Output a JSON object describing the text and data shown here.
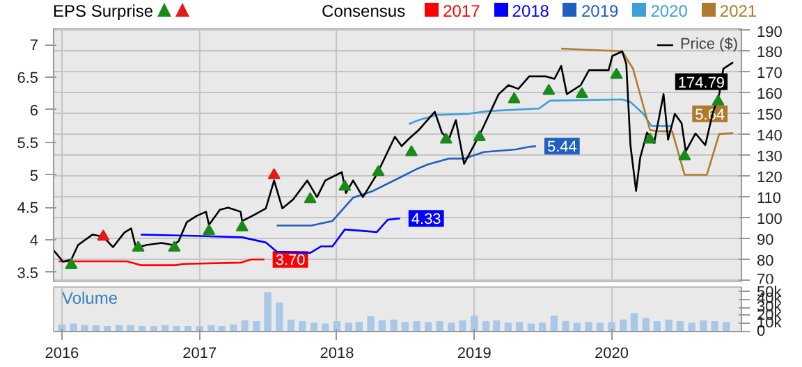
{
  "chart_data": [
    {
      "type": "line",
      "legend_title": "Consensus",
      "annotations": [
        "EPS Surprise"
      ],
      "legend": "top",
      "grid": true,
      "tick_labels": "y",
      "xlim": [
        "2015-12-10",
        "2020-12-11"
      ],
      "xticks": [
        "2016",
        "2017",
        "2018",
        "2019",
        "2020"
      ],
      "ylim": [
        3.36,
        7.25
      ],
      "yticks": [
        3.5,
        4,
        4.5,
        5,
        5.5,
        6,
        6.5,
        7
      ],
      "y2lim": [
        69.5,
        191
      ],
      "y2ticks": [
        70,
        80,
        90,
        100,
        110,
        120,
        130,
        140,
        150,
        160,
        170,
        180,
        190
      ],
      "series": [
        {
          "name": "2017",
          "color": "#ff0000",
          "x": [
            "2015-12-24",
            "2016-06-22",
            "2016-07-29",
            "2016-10-29",
            "2016-11-17",
            "2017-04-20",
            "2017-05-19",
            "2017-06-22"
          ],
          "values": [
            3.67,
            3.67,
            3.61,
            3.61,
            3.63,
            3.65,
            3.7,
            3.7
          ],
          "value_labels": [
            null,
            null,
            null,
            null,
            null,
            null,
            null,
            "3.70"
          ]
        },
        {
          "name": "2018",
          "color": "#0000ff",
          "x": [
            "2016-07-29",
            "2017-01-03",
            "2017-04-24",
            "2017-06-26",
            "2017-07-25",
            "2017-10-22",
            "2017-11-20",
            "2017-12-20",
            "2018-01-22",
            "2018-04-17",
            "2018-05-16",
            "2018-06-18"
          ],
          "values": [
            4.08,
            4.06,
            4.04,
            3.96,
            3.82,
            3.8,
            3.9,
            3.9,
            4.16,
            4.12,
            4.31,
            4.33
          ],
          "value_labels": [
            null,
            null,
            null,
            null,
            null,
            null,
            null,
            null,
            null,
            null,
            null,
            "4.33"
          ]
        },
        {
          "name": "2019",
          "color": "#1f5fbf",
          "x": [
            "2017-07-25",
            "2017-10-25",
            "2017-12-20",
            "2018-02-13",
            "2018-04-06",
            "2018-06-18",
            "2018-08-05",
            "2018-08-31",
            "2018-10-25",
            "2018-12-05",
            "2019-01-26",
            "2019-04-21",
            "2019-05-27",
            "2019-06-14"
          ],
          "values": [
            4.22,
            4.22,
            4.29,
            4.65,
            4.75,
            4.96,
            5.1,
            5.16,
            5.25,
            5.25,
            5.35,
            5.39,
            5.43,
            5.44
          ],
          "value_labels": [
            null,
            null,
            null,
            null,
            null,
            null,
            null,
            null,
            null,
            null,
            null,
            null,
            null,
            "5.44"
          ]
        },
        {
          "name": "2020",
          "color": "#3fa0d8",
          "x": [
            "2018-07-11",
            "2018-08-05",
            "2018-09-22",
            "2018-12-19",
            "2019-02-06",
            "2019-06-22",
            "2019-07-21",
            "2020-01-29",
            "2020-02-20",
            "2020-03-25",
            "2020-04-16",
            "2020-06-10"
          ],
          "values": [
            5.78,
            5.84,
            5.92,
            5.94,
            5.98,
            6.02,
            6.14,
            6.16,
            6.12,
            5.94,
            5.75,
            5.75
          ]
        },
        {
          "name": "2021",
          "color": "#b07a2e",
          "x": [
            "2019-08-20",
            "2020-01-29",
            "2020-02-27",
            "2020-04-12",
            "2020-04-30",
            "2020-06-10",
            "2020-07-13",
            "2020-09-10",
            "2020-10-13",
            "2020-11-19"
          ],
          "values": [
            6.94,
            6.9,
            6.63,
            5.69,
            5.67,
            5.67,
            5.0,
            5.0,
            5.63,
            5.64
          ],
          "value_labels": [
            null,
            null,
            null,
            null,
            null,
            null,
            null,
            null,
            null,
            "5.64"
          ]
        },
        {
          "name": "Price ($)",
          "color": "#000000",
          "axis": "y2",
          "x": [
            "2015-12-10",
            "2016-01-04",
            "2016-01-26",
            "2016-02-13",
            "2016-03-22",
            "2016-04-20",
            "2016-05-16",
            "2016-06-15",
            "2016-07-03",
            "2016-07-14",
            "2016-07-22",
            "2016-08-13",
            "2016-09-22",
            "2016-10-22",
            "2016-11-06",
            "2016-11-28",
            "2016-12-24",
            "2017-01-18",
            "2017-01-26",
            "2017-02-24",
            "2017-03-18",
            "2017-04-20",
            "2017-04-24",
            "2017-05-27",
            "2017-06-26",
            "2017-07-18",
            "2017-08-09",
            "2017-09-07",
            "2017-10-14",
            "2017-11-09",
            "2017-12-01",
            "2018-01-14",
            "2018-01-25",
            "2018-02-13",
            "2018-03-11",
            "2018-04-17",
            "2018-06-04",
            "2018-06-22",
            "2018-07-11",
            "2018-08-05",
            "2018-09-18",
            "2018-10-07",
            "2018-10-25",
            "2018-11-13",
            "2018-12-05",
            "2019-01-18",
            "2019-03-07",
            "2019-04-02",
            "2019-04-28",
            "2019-05-27",
            "2019-07-11",
            "2019-08-02",
            "2019-08-20",
            "2019-09-04",
            "2019-10-11",
            "2019-11-02",
            "2019-12-24",
            "2020-01-03",
            "2020-01-29",
            "2020-02-09",
            "2020-02-20",
            "2020-03-06",
            "2020-03-17",
            "2020-04-04",
            "2020-04-23",
            "2020-05-18",
            "2020-05-30",
            "2020-06-17",
            "2020-07-05",
            "2020-07-16",
            "2020-08-11",
            "2020-09-06",
            "2020-09-25",
            "2020-10-13",
            "2020-10-24",
            "2020-11-19"
          ],
          "values": [
            84.5,
            79,
            80,
            87,
            92,
            91,
            86,
            93,
            95,
            87,
            86,
            87,
            88,
            87,
            88.8,
            98,
            101,
            103,
            96.7,
            104,
            105,
            103,
            98.5,
            101.6,
            104.6,
            118,
            104.6,
            109,
            118,
            110,
            118,
            122,
            112,
            118,
            110,
            121,
            139,
            134.5,
            138,
            142,
            151,
            141,
            137.6,
            147,
            126,
            141,
            159.5,
            163.8,
            162,
            168,
            168,
            166.8,
            173,
            159.5,
            163.8,
            171,
            171,
            177.8,
            180,
            174,
            135,
            113,
            129,
            141,
            136,
            159.5,
            137.6,
            150,
            145.5,
            132,
            140.6,
            135,
            149.8,
            159.5,
            171.7,
            174.79
          ],
          "value_labels": [
            null,
            null,
            null,
            null,
            null,
            null,
            null,
            null,
            null,
            null,
            null,
            null,
            null,
            null,
            null,
            null,
            null,
            null,
            null,
            null,
            null,
            null,
            null,
            null,
            null,
            null,
            null,
            null,
            null,
            null,
            null,
            null,
            null,
            null,
            null,
            null,
            null,
            null,
            null,
            null,
            null,
            null,
            null,
            null,
            null,
            null,
            null,
            null,
            null,
            null,
            null,
            null,
            null,
            null,
            null,
            null,
            null,
            null,
            null,
            null,
            null,
            null,
            null,
            null,
            null,
            null,
            null,
            null,
            null,
            null,
            null,
            null,
            null,
            null,
            null,
            "174.79"
          ]
        },
        {
          "type": "scatter",
          "color": "#1a8a1a",
          "marker": "triangle",
          "axis": "y2",
          "x": [
            "2016-01-26",
            "2016-07-22",
            "2016-10-26",
            "2017-01-26",
            "2017-04-24",
            "2017-10-22",
            "2018-01-22",
            "2018-04-21",
            "2018-07-18",
            "2018-10-18",
            "2019-01-15",
            "2019-04-17",
            "2019-07-18",
            "2019-10-14",
            "2020-01-14",
            "2020-04-12",
            "2020-07-13",
            "2020-10-10"
          ],
          "values": [
            77.4,
            85.7,
            85.7,
            93.7,
            95.5,
            109,
            115,
            122,
            131.5,
            137.6,
            138.8,
            157,
            161,
            159.5,
            168.7,
            137.6,
            129.6,
            155.9
          ]
        },
        {
          "type": "scatter",
          "color": "#e31a1c",
          "marker": "triangle",
          "axis": "y2",
          "x": [
            "2016-04-20",
            "2017-07-18"
          ],
          "values": [
            91,
            120.5
          ]
        }
      ]
    },
    {
      "type": "bar",
      "title": "Volume",
      "color": "#a8c8e8",
      "grid": "x",
      "tick_labels": "xy",
      "xlim": [
        "2015-12-10",
        "2020-12-11"
      ],
      "xticks": [
        "2016",
        "2017",
        "2018",
        "2019",
        "2020"
      ],
      "ylim": [
        0,
        55
      ],
      "yticks": [
        0,
        {
          "value": 10,
          "label": "10k"
        },
        {
          "value": 20,
          "label": "20k"
        },
        {
          "value": 30,
          "label": "30k"
        },
        {
          "value": 40,
          "label": "40k"
        },
        {
          "value": 50,
          "label": "50k"
        }
      ],
      "x": [
        "2016-01",
        "2016-02",
        "2016-03",
        "2016-04",
        "2016-05",
        "2016-06",
        "2016-07",
        "2016-08",
        "2016-09",
        "2016-10",
        "2016-11",
        "2016-12",
        "2017-01",
        "2017-02",
        "2017-03",
        "2017-04",
        "2017-05",
        "2017-06",
        "2017-07",
        "2017-08",
        "2017-09",
        "2017-10",
        "2017-11",
        "2017-12",
        "2018-01",
        "2018-02",
        "2018-03",
        "2018-04",
        "2018-05",
        "2018-06",
        "2018-07",
        "2018-08",
        "2018-09",
        "2018-10",
        "2018-11",
        "2018-12",
        "2019-01",
        "2019-02",
        "2019-03",
        "2019-04",
        "2019-05",
        "2019-06",
        "2019-07",
        "2019-08",
        "2019-09",
        "2019-10",
        "2019-11",
        "2019-12",
        "2020-01",
        "2020-02",
        "2020-03",
        "2020-04",
        "2020-05",
        "2020-06",
        "2020-07",
        "2020-08",
        "2020-09",
        "2020-10",
        "2020-11"
      ],
      "values": [
        8,
        9,
        7,
        7,
        6,
        7,
        7,
        6,
        6,
        7,
        6,
        6,
        6,
        7,
        6,
        8,
        13,
        12,
        48,
        35,
        14,
        12,
        10,
        9,
        12,
        10,
        11,
        18,
        13,
        14,
        11,
        12,
        11,
        12,
        10,
        13,
        19,
        12,
        13,
        10,
        11,
        9,
        10,
        19,
        12,
        10,
        11,
        10,
        11,
        14,
        22,
        16,
        12,
        14,
        12,
        10,
        13,
        12,
        11
      ]
    }
  ]
}
